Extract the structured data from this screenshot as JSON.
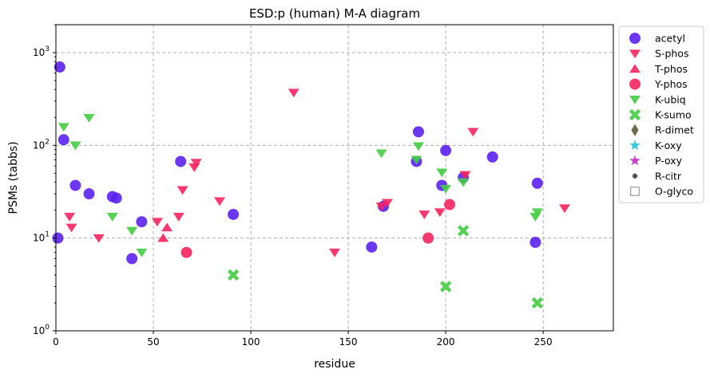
{
  "chart_data": {
    "type": "scatter",
    "title": "ESD:p (human) M-A diagram",
    "xlabel": "residue",
    "ylabel": "PSMs (tabbs)",
    "xlim": [
      0,
      286
    ],
    "ylim": [
      1,
      2000
    ],
    "yscale": "log",
    "grid": true,
    "legend_position": "outside-right",
    "x_ticks": [
      0,
      50,
      100,
      150,
      200,
      250
    ],
    "x_tick_labels": [
      "0",
      "50",
      "100",
      "150",
      "200",
      "250"
    ],
    "y_ticks": [
      1,
      10,
      100,
      1000
    ],
    "y_tick_labels": [
      {
        "base": "10",
        "exp": "0"
      },
      {
        "base": "10",
        "exp": "1"
      },
      {
        "base": "10",
        "exp": "2"
      },
      {
        "base": "10",
        "exp": "3"
      }
    ],
    "series": [
      {
        "name": "acetyl",
        "marker": "circle",
        "color": "#5b21f0",
        "points": [
          [
            2,
            700
          ],
          [
            1,
            10
          ],
          [
            4,
            115
          ],
          [
            10,
            37
          ],
          [
            17,
            30
          ],
          [
            29,
            28
          ],
          [
            31,
            27
          ],
          [
            44,
            15
          ],
          [
            39,
            6
          ],
          [
            64,
            67
          ],
          [
            91,
            18
          ],
          [
            162,
            8
          ],
          [
            168,
            22
          ],
          [
            185,
            67
          ],
          [
            186,
            140
          ],
          [
            198,
            37
          ],
          [
            200,
            88
          ],
          [
            209,
            45
          ],
          [
            224,
            75
          ],
          [
            246,
            9
          ],
          [
            247,
            39
          ]
        ]
      },
      {
        "name": "S-phos",
        "marker": "triangle-down",
        "color": "#f5245e",
        "points": [
          [
            7,
            17
          ],
          [
            8,
            13
          ],
          [
            22,
            10
          ],
          [
            52,
            15
          ],
          [
            63,
            17
          ],
          [
            65,
            33
          ],
          [
            71,
            58
          ],
          [
            72,
            65
          ],
          [
            84,
            25
          ],
          [
            122,
            370
          ],
          [
            143,
            7
          ],
          [
            167,
            22
          ],
          [
            170,
            24
          ],
          [
            189,
            18
          ],
          [
            197,
            19
          ],
          [
            210,
            48
          ],
          [
            214,
            140
          ],
          [
            261,
            21
          ]
        ]
      },
      {
        "name": "T-phos",
        "marker": "triangle-up",
        "color": "#f5245e",
        "points": [
          [
            55,
            10
          ],
          [
            57,
            13
          ]
        ]
      },
      {
        "name": "Y-phos",
        "marker": "circle",
        "color": "#f5245e",
        "points": [
          [
            67,
            7
          ],
          [
            191,
            10
          ],
          [
            202,
            23
          ]
        ]
      },
      {
        "name": "K-ubiq",
        "marker": "triangle-down",
        "color": "#44cc44",
        "points": [
          [
            4,
            158
          ],
          [
            10,
            100
          ],
          [
            17,
            198
          ],
          [
            29,
            17
          ],
          [
            39,
            12
          ],
          [
            44,
            7
          ],
          [
            167,
            82
          ],
          [
            185,
            70
          ],
          [
            186,
            98
          ],
          [
            198,
            51
          ],
          [
            200,
            34
          ],
          [
            209,
            40
          ],
          [
            246,
            17
          ],
          [
            247,
            19
          ]
        ]
      },
      {
        "name": "K-sumo",
        "marker": "x-thick",
        "color": "#44cc44",
        "points": [
          [
            91,
            4
          ],
          [
            200,
            3
          ],
          [
            209,
            12
          ],
          [
            247,
            2
          ]
        ]
      },
      {
        "name": "R-dimet",
        "marker": "diamond",
        "color": "#6b6b48",
        "points": []
      },
      {
        "name": "K-oxy",
        "marker": "star",
        "color": "#35c9d4",
        "points": []
      },
      {
        "name": "P-oxy",
        "marker": "star",
        "color": "#c943c9",
        "points": []
      },
      {
        "name": "R-citr",
        "marker": "dot",
        "color": "#555555",
        "points": []
      },
      {
        "name": "O-glyco",
        "marker": "square-open",
        "color": "#888888",
        "points": []
      }
    ]
  }
}
